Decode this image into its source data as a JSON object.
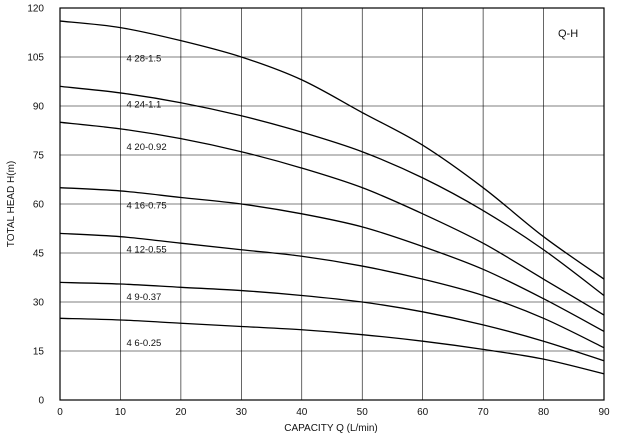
{
  "chart_data": {
    "type": "line",
    "title": "",
    "corner_label": "Q-H",
    "xlabel": "CAPACITY  Q (L/min)",
    "ylabel": "TOTAL HEAD  H(m)",
    "xlim": [
      0,
      90
    ],
    "ylim": [
      0,
      120
    ],
    "xticks": [
      0,
      10,
      20,
      30,
      40,
      50,
      60,
      70,
      80,
      90
    ],
    "yticks": [
      0,
      15,
      30,
      45,
      60,
      75,
      90,
      105,
      120
    ],
    "grid": true,
    "legend": "inline labels on curves",
    "line_color": "#000000",
    "series": [
      {
        "name": "4 28-1.5",
        "x": [
          0,
          10,
          20,
          30,
          40,
          50,
          60,
          70,
          80,
          90
        ],
        "values": [
          116,
          114,
          110,
          105,
          98,
          88,
          78,
          65,
          50,
          37
        ]
      },
      {
        "name": "4 24-1.1",
        "x": [
          0,
          10,
          20,
          30,
          40,
          50,
          60,
          70,
          80,
          90
        ],
        "values": [
          96,
          94,
          91,
          87,
          82,
          76,
          68,
          58,
          46,
          32
        ]
      },
      {
        "name": "4 20-0.92",
        "x": [
          0,
          10,
          20,
          30,
          40,
          50,
          60,
          70,
          80,
          90
        ],
        "values": [
          85,
          83,
          80,
          76,
          71,
          65,
          57,
          48,
          37,
          26
        ]
      },
      {
        "name": "4 16-0.75",
        "x": [
          0,
          10,
          20,
          30,
          40,
          50,
          60,
          70,
          80,
          90
        ],
        "values": [
          65,
          64,
          62,
          60,
          57,
          53,
          47,
          40,
          31,
          21
        ]
      },
      {
        "name": "4 12-0.55",
        "x": [
          0,
          10,
          20,
          30,
          40,
          50,
          60,
          70,
          80,
          90
        ],
        "values": [
          51,
          50,
          48,
          46,
          44,
          41,
          37,
          32,
          25,
          16
        ]
      },
      {
        "name": "4 9-0.37",
        "x": [
          0,
          10,
          20,
          30,
          40,
          50,
          60,
          70,
          80,
          90
        ],
        "values": [
          36,
          35.5,
          34.5,
          33.5,
          32,
          30,
          27,
          23,
          18,
          12
        ]
      },
      {
        "name": "4 6-0.25",
        "x": [
          0,
          10,
          20,
          30,
          40,
          50,
          60,
          70,
          80,
          90
        ],
        "values": [
          25,
          24.5,
          23.5,
          22.5,
          21.5,
          20,
          18,
          15.5,
          12.5,
          8
        ]
      }
    ],
    "label_positions": [
      {
        "text": "4 28-1.5",
        "x": 11,
        "y": 104.5
      },
      {
        "text": "4 24-1.1",
        "x": 11,
        "y": 90.5
      },
      {
        "text": "4 20-0.92",
        "x": 11,
        "y": 77.5
      },
      {
        "text": "4 16-0.75",
        "x": 11,
        "y": 59.5
      },
      {
        "text": "4 12-0.55",
        "x": 11,
        "y": 46
      },
      {
        "text": "4 9-0.37",
        "x": 11,
        "y": 31.5
      },
      {
        "text": "4 6-0.25",
        "x": 11,
        "y": 17.5
      }
    ]
  }
}
